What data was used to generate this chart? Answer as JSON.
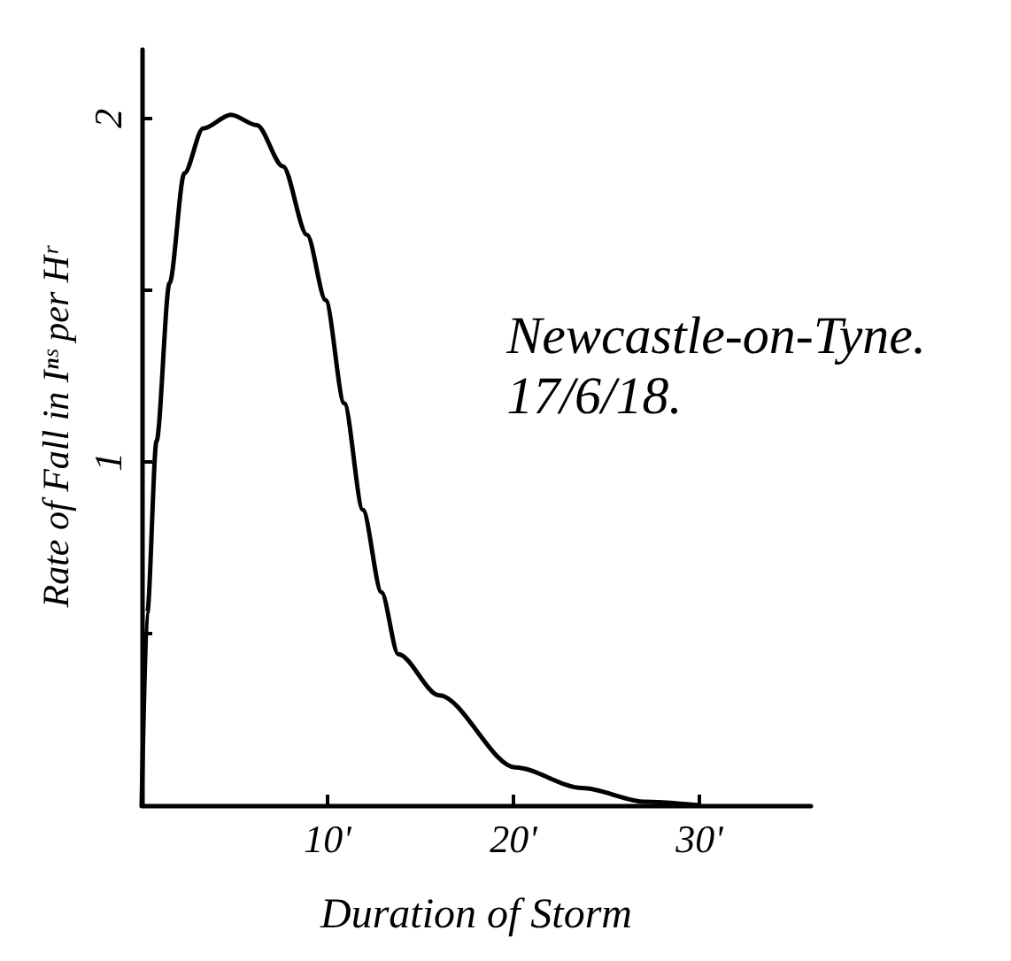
{
  "chart_data": {
    "type": "line",
    "xlabel": "Duration of Storm",
    "ylabel": "Rate of Fall in Iⁿˢ per Hʳ",
    "annotations": [
      "Newcastle-on-Tyne.\n17/6/18."
    ],
    "x": [
      0,
      0.3,
      0.8,
      1.5,
      2.3,
      3.3,
      4.8,
      6.2,
      7.6,
      8.9,
      9.9,
      10.9,
      11.9,
      12.9,
      13.8,
      16.0,
      20.1,
      23.7,
      27.1,
      30
    ],
    "series": [
      {
        "color": "#000000",
        "values": [
          0,
          0.56,
          1.06,
          1.52,
          1.84,
          1.97,
          2.01,
          1.98,
          1.86,
          1.66,
          1.47,
          1.17,
          0.86,
          0.62,
          0.44,
          0.32,
          0.11,
          0.05,
          0.01,
          0
        ]
      }
    ],
    "xlim": [
      0,
      36
    ],
    "ylim": [
      0,
      2.2
    ],
    "xticks": [
      {
        "value": 10,
        "label": "10'"
      },
      {
        "value": 20,
        "label": "20'"
      },
      {
        "value": 30,
        "label": "30'"
      }
    ],
    "yticks": [
      {
        "value": 0.5,
        "label": null
      },
      1,
      {
        "value": 1.5,
        "label": null
      },
      2
    ],
    "grid": false,
    "marker": "none",
    "line_style": "solid"
  }
}
